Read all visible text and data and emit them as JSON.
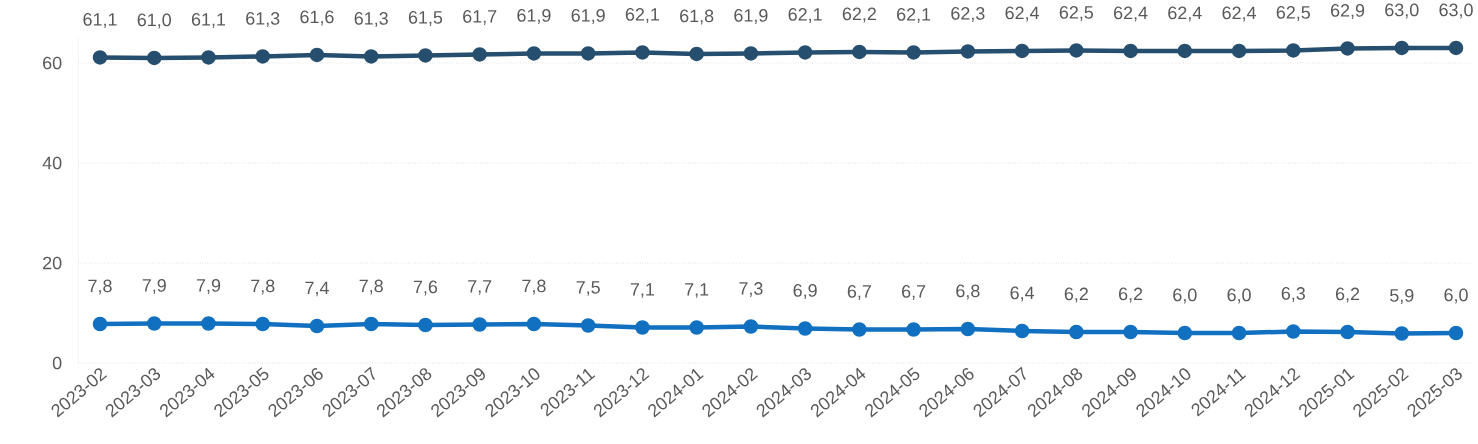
{
  "chart_data": {
    "type": "line",
    "categories": [
      "2023-02",
      "2023-03",
      "2023-04",
      "2023-05",
      "2023-06",
      "2023-07",
      "2023-08",
      "2023-09",
      "2023-10",
      "2023-11",
      "2023-12",
      "2024-01",
      "2024-02",
      "2024-03",
      "2024-04",
      "2024-05",
      "2024-06",
      "2024-07",
      "2024-08",
      "2024-09",
      "2024-10",
      "2024-11",
      "2024-12",
      "2025-01",
      "2025-02",
      "2025-03"
    ],
    "series": [
      {
        "color": "#264e6e",
        "values": [
          61.1,
          61.0,
          61.1,
          61.3,
          61.6,
          61.3,
          61.5,
          61.7,
          61.9,
          61.9,
          62.1,
          61.8,
          61.9,
          62.1,
          62.2,
          62.1,
          62.3,
          62.4,
          62.5,
          62.4,
          62.4,
          62.4,
          62.5,
          62.9,
          63.0,
          63.0
        ],
        "value_labels": [
          "61,1",
          "61,0",
          "61,1",
          "61,3",
          "61,6",
          "61,3",
          "61,5",
          "61,7",
          "61,9",
          "61,9",
          "62,1",
          "61,8",
          "61,9",
          "62,1",
          "62,2",
          "62,1",
          "62,3",
          "62,4",
          "62,5",
          "62,4",
          "62,4",
          "62,4",
          "62,5",
          "62,9",
          "63,0",
          "63,0"
        ]
      },
      {
        "color": "#1170c0",
        "values": [
          7.8,
          7.9,
          7.9,
          7.8,
          7.4,
          7.8,
          7.6,
          7.7,
          7.8,
          7.5,
          7.1,
          7.1,
          7.3,
          6.9,
          6.7,
          6.7,
          6.8,
          6.4,
          6.2,
          6.2,
          6.0,
          6.0,
          6.3,
          6.2,
          5.9,
          6.0
        ],
        "value_labels": [
          "7,8",
          "7,9",
          "7,9",
          "7,8",
          "7,4",
          "7,8",
          "7,6",
          "7,7",
          "7,8",
          "7,5",
          "7,1",
          "7,1",
          "7,3",
          "6,9",
          "6,7",
          "6,7",
          "6,8",
          "6,4",
          "6,2",
          "6,2",
          "6,0",
          "6,0",
          "6,3",
          "6,2",
          "5,9",
          "6,0"
        ]
      }
    ],
    "ylim": [
      0,
      65
    ],
    "yticks": [
      0,
      20,
      40,
      60
    ],
    "grid": "y",
    "marker": "circle",
    "line_style": "solid"
  }
}
